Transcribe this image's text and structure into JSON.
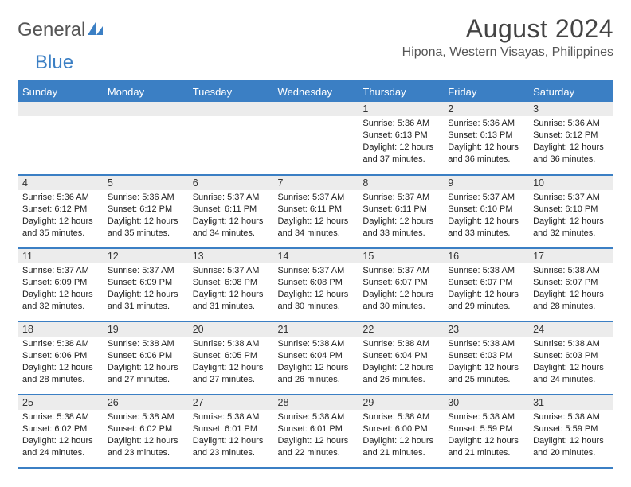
{
  "brand": {
    "part1": "General",
    "part2": "Blue"
  },
  "title": "August 2024",
  "location": "Hipona, Western Visayas, Philippines",
  "colors": {
    "accent": "#3b7fc4",
    "header_bg": "#3b7fc4",
    "header_text": "#ffffff",
    "daynum_bg": "#ececec",
    "text": "#222222",
    "title_text": "#444444",
    "page_bg": "#ffffff"
  },
  "day_headers": [
    "Sunday",
    "Monday",
    "Tuesday",
    "Wednesday",
    "Thursday",
    "Friday",
    "Saturday"
  ],
  "weeks": [
    [
      {
        "n": "",
        "sr": "",
        "ss": "",
        "dl": ""
      },
      {
        "n": "",
        "sr": "",
        "ss": "",
        "dl": ""
      },
      {
        "n": "",
        "sr": "",
        "ss": "",
        "dl": ""
      },
      {
        "n": "",
        "sr": "",
        "ss": "",
        "dl": ""
      },
      {
        "n": "1",
        "sr": "Sunrise: 5:36 AM",
        "ss": "Sunset: 6:13 PM",
        "dl": "Daylight: 12 hours and 37 minutes."
      },
      {
        "n": "2",
        "sr": "Sunrise: 5:36 AM",
        "ss": "Sunset: 6:13 PM",
        "dl": "Daylight: 12 hours and 36 minutes."
      },
      {
        "n": "3",
        "sr": "Sunrise: 5:36 AM",
        "ss": "Sunset: 6:12 PM",
        "dl": "Daylight: 12 hours and 36 minutes."
      }
    ],
    [
      {
        "n": "4",
        "sr": "Sunrise: 5:36 AM",
        "ss": "Sunset: 6:12 PM",
        "dl": "Daylight: 12 hours and 35 minutes."
      },
      {
        "n": "5",
        "sr": "Sunrise: 5:36 AM",
        "ss": "Sunset: 6:12 PM",
        "dl": "Daylight: 12 hours and 35 minutes."
      },
      {
        "n": "6",
        "sr": "Sunrise: 5:37 AM",
        "ss": "Sunset: 6:11 PM",
        "dl": "Daylight: 12 hours and 34 minutes."
      },
      {
        "n": "7",
        "sr": "Sunrise: 5:37 AM",
        "ss": "Sunset: 6:11 PM",
        "dl": "Daylight: 12 hours and 34 minutes."
      },
      {
        "n": "8",
        "sr": "Sunrise: 5:37 AM",
        "ss": "Sunset: 6:11 PM",
        "dl": "Daylight: 12 hours and 33 minutes."
      },
      {
        "n": "9",
        "sr": "Sunrise: 5:37 AM",
        "ss": "Sunset: 6:10 PM",
        "dl": "Daylight: 12 hours and 33 minutes."
      },
      {
        "n": "10",
        "sr": "Sunrise: 5:37 AM",
        "ss": "Sunset: 6:10 PM",
        "dl": "Daylight: 12 hours and 32 minutes."
      }
    ],
    [
      {
        "n": "11",
        "sr": "Sunrise: 5:37 AM",
        "ss": "Sunset: 6:09 PM",
        "dl": "Daylight: 12 hours and 32 minutes."
      },
      {
        "n": "12",
        "sr": "Sunrise: 5:37 AM",
        "ss": "Sunset: 6:09 PM",
        "dl": "Daylight: 12 hours and 31 minutes."
      },
      {
        "n": "13",
        "sr": "Sunrise: 5:37 AM",
        "ss": "Sunset: 6:08 PM",
        "dl": "Daylight: 12 hours and 31 minutes."
      },
      {
        "n": "14",
        "sr": "Sunrise: 5:37 AM",
        "ss": "Sunset: 6:08 PM",
        "dl": "Daylight: 12 hours and 30 minutes."
      },
      {
        "n": "15",
        "sr": "Sunrise: 5:37 AM",
        "ss": "Sunset: 6:07 PM",
        "dl": "Daylight: 12 hours and 30 minutes."
      },
      {
        "n": "16",
        "sr": "Sunrise: 5:38 AM",
        "ss": "Sunset: 6:07 PM",
        "dl": "Daylight: 12 hours and 29 minutes."
      },
      {
        "n": "17",
        "sr": "Sunrise: 5:38 AM",
        "ss": "Sunset: 6:07 PM",
        "dl": "Daylight: 12 hours and 28 minutes."
      }
    ],
    [
      {
        "n": "18",
        "sr": "Sunrise: 5:38 AM",
        "ss": "Sunset: 6:06 PM",
        "dl": "Daylight: 12 hours and 28 minutes."
      },
      {
        "n": "19",
        "sr": "Sunrise: 5:38 AM",
        "ss": "Sunset: 6:06 PM",
        "dl": "Daylight: 12 hours and 27 minutes."
      },
      {
        "n": "20",
        "sr": "Sunrise: 5:38 AM",
        "ss": "Sunset: 6:05 PM",
        "dl": "Daylight: 12 hours and 27 minutes."
      },
      {
        "n": "21",
        "sr": "Sunrise: 5:38 AM",
        "ss": "Sunset: 6:04 PM",
        "dl": "Daylight: 12 hours and 26 minutes."
      },
      {
        "n": "22",
        "sr": "Sunrise: 5:38 AM",
        "ss": "Sunset: 6:04 PM",
        "dl": "Daylight: 12 hours and 26 minutes."
      },
      {
        "n": "23",
        "sr": "Sunrise: 5:38 AM",
        "ss": "Sunset: 6:03 PM",
        "dl": "Daylight: 12 hours and 25 minutes."
      },
      {
        "n": "24",
        "sr": "Sunrise: 5:38 AM",
        "ss": "Sunset: 6:03 PM",
        "dl": "Daylight: 12 hours and 24 minutes."
      }
    ],
    [
      {
        "n": "25",
        "sr": "Sunrise: 5:38 AM",
        "ss": "Sunset: 6:02 PM",
        "dl": "Daylight: 12 hours and 24 minutes."
      },
      {
        "n": "26",
        "sr": "Sunrise: 5:38 AM",
        "ss": "Sunset: 6:02 PM",
        "dl": "Daylight: 12 hours and 23 minutes."
      },
      {
        "n": "27",
        "sr": "Sunrise: 5:38 AM",
        "ss": "Sunset: 6:01 PM",
        "dl": "Daylight: 12 hours and 23 minutes."
      },
      {
        "n": "28",
        "sr": "Sunrise: 5:38 AM",
        "ss": "Sunset: 6:01 PM",
        "dl": "Daylight: 12 hours and 22 minutes."
      },
      {
        "n": "29",
        "sr": "Sunrise: 5:38 AM",
        "ss": "Sunset: 6:00 PM",
        "dl": "Daylight: 12 hours and 21 minutes."
      },
      {
        "n": "30",
        "sr": "Sunrise: 5:38 AM",
        "ss": "Sunset: 5:59 PM",
        "dl": "Daylight: 12 hours and 21 minutes."
      },
      {
        "n": "31",
        "sr": "Sunrise: 5:38 AM",
        "ss": "Sunset: 5:59 PM",
        "dl": "Daylight: 12 hours and 20 minutes."
      }
    ]
  ]
}
